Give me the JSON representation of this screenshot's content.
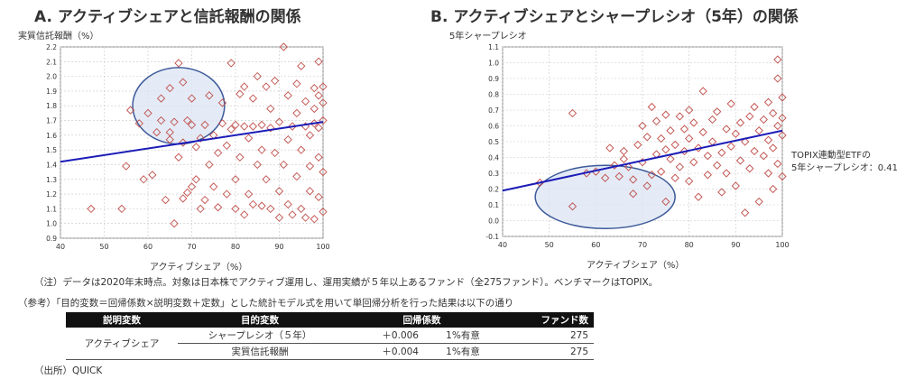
{
  "chart_a": {
    "title": "A. アクティブシェアと信託報酬の関係",
    "ylabel": "実質信託報酬（%）",
    "xlabel": "アクティブシェア（%）"
  },
  "chart_b": {
    "title": "B. アクティブシェアとシャープレシオ（5年）の関係",
    "ylabel": "5年シャープレシオ",
    "xlabel": "アクティブシェア（%）",
    "annotation_line1": "TOPIX連動型ETFの",
    "annotation_line2": "5年シャープレシオ：0.41"
  },
  "notes": {
    "note": "（注）データは2020年末時点。対象は日本株でアクティブ運用し、運用実績が５年以上あるファンド（全275ファンド）。ベンチマークはTOPIX。",
    "reference": "（参考）「目的変数＝回帰係数×説明変数＋定数」とした統計モデル式を用いて単回帰分析を行った結果は以下の通り",
    "source": "（出所）QUICK"
  },
  "table": {
    "headers": [
      "説明変数",
      "目的変数",
      "回帰係数",
      "ファンド数"
    ],
    "explanatory": "アクティブシェア",
    "rows": [
      {
        "target": "シャープレシオ（５年）",
        "coef": "＋0.006",
        "sig": "1%有意",
        "n": "275"
      },
      {
        "target": "実質信託報酬",
        "coef": "＋0.004",
        "sig": "1%有意",
        "n": "275"
      }
    ]
  },
  "chart_data": [
    {
      "type": "scatter",
      "title": "A. アクティブシェアと信託報酬の関係",
      "xlabel": "アクティブシェア（%）",
      "ylabel": "実質信託報酬（%）",
      "xlim": [
        40,
        100
      ],
      "ylim": [
        0.9,
        2.2
      ],
      "xticks": [
        40,
        50,
        60,
        70,
        80,
        90,
        100
      ],
      "yticks": [
        0.9,
        1.0,
        1.1,
        1.2,
        1.3,
        1.4,
        1.5,
        1.6,
        1.7,
        1.8,
        1.9,
        2.0,
        2.1,
        2.2
      ],
      "grid": true,
      "trendline": [
        [
          40,
          1.42
        ],
        [
          100,
          1.69
        ]
      ],
      "highlight_ellipse": {
        "x_center": 67,
        "y_center": 1.8,
        "x_radius": 10.5,
        "y_radius": 0.26
      },
      "points": [
        [
          47,
          1.1
        ],
        [
          54,
          1.1
        ],
        [
          55,
          1.39
        ],
        [
          56,
          1.77
        ],
        [
          58,
          1.68
        ],
        [
          59,
          1.3
        ],
        [
          60,
          1.75
        ],
        [
          61,
          1.33
        ],
        [
          62,
          1.62
        ],
        [
          63,
          1.7
        ],
        [
          63,
          1.85
        ],
        [
          64,
          1.16
        ],
        [
          65,
          1.57
        ],
        [
          65,
          1.62
        ],
        [
          65,
          1.92
        ],
        [
          66,
          1.0
        ],
        [
          66,
          1.69
        ],
        [
          67,
          2.09
        ],
        [
          67,
          1.45
        ],
        [
          68,
          1.17
        ],
        [
          68,
          1.96
        ],
        [
          68,
          1.55
        ],
        [
          69,
          1.7
        ],
        [
          69,
          1.21
        ],
        [
          70,
          1.25
        ],
        [
          70,
          1.67
        ],
        [
          70,
          1.85
        ],
        [
          71,
          1.52
        ],
        [
          71,
          1.3
        ],
        [
          72,
          1.58
        ],
        [
          72,
          1.1
        ],
        [
          73,
          1.67
        ],
        [
          73,
          1.16
        ],
        [
          74,
          1.87
        ],
        [
          74,
          1.4
        ],
        [
          75,
          1.25
        ],
        [
          75,
          1.6
        ],
        [
          76,
          1.11
        ],
        [
          76,
          1.48
        ],
        [
          77,
          1.68
        ],
        [
          77,
          1.82
        ],
        [
          78,
          1.53
        ],
        [
          78,
          1.2
        ],
        [
          79,
          1.64
        ],
        [
          79,
          2.09
        ],
        [
          80,
          1.1
        ],
        [
          80,
          1.3
        ],
        [
          80,
          1.67
        ],
        [
          81,
          1.45
        ],
        [
          81,
          1.88
        ],
        [
          82,
          1.06
        ],
        [
          82,
          1.66
        ],
        [
          82,
          1.93
        ],
        [
          83,
          1.58
        ],
        [
          83,
          1.2
        ],
        [
          84,
          1.13
        ],
        [
          84,
          1.85
        ],
        [
          84,
          1.66
        ],
        [
          85,
          1.4
        ],
        [
          85,
          2.0
        ],
        [
          86,
          1.67
        ],
        [
          86,
          1.5
        ],
        [
          86,
          1.12
        ],
        [
          87,
          1.93
        ],
        [
          87,
          1.3
        ],
        [
          88,
          1.65
        ],
        [
          88,
          1.78
        ],
        [
          88,
          1.1
        ],
        [
          89,
          1.48
        ],
        [
          89,
          1.97
        ],
        [
          90,
          1.04
        ],
        [
          90,
          1.69
        ],
        [
          90,
          1.22
        ],
        [
          91,
          2.2
        ],
        [
          91,
          1.4
        ],
        [
          92,
          1.57
        ],
        [
          92,
          1.87
        ],
        [
          92,
          1.13
        ],
        [
          93,
          1.06
        ],
        [
          93,
          1.66
        ],
        [
          94,
          1.32
        ],
        [
          94,
          1.95
        ],
        [
          94,
          1.75
        ],
        [
          95,
          1.1
        ],
        [
          95,
          1.5
        ],
        [
          95,
          2.07
        ],
        [
          96,
          1.04
        ],
        [
          96,
          1.66
        ],
        [
          96,
          1.83
        ],
        [
          97,
          1.6
        ],
        [
          97,
          1.39
        ],
        [
          97,
          1.22
        ],
        [
          98,
          1.92
        ],
        [
          98,
          1.68
        ],
        [
          98,
          1.78
        ],
        [
          98,
          1.03
        ],
        [
          99,
          1.87
        ],
        [
          99,
          1.65
        ],
        [
          99,
          1.45
        ],
        [
          99,
          2.1
        ],
        [
          99,
          1.18
        ],
        [
          100,
          1.7
        ],
        [
          100,
          1.93
        ],
        [
          100,
          1.35
        ],
        [
          100,
          1.08
        ],
        [
          100,
          1.82
        ]
      ]
    },
    {
      "type": "scatter",
      "title": "B. アクティブシェアとシャープレシオ（5年）の関係",
      "xlabel": "アクティブシェア（%）",
      "ylabel": "5年シャープレシオ",
      "xlim": [
        40,
        100
      ],
      "ylim": [
        -0.1,
        1.1
      ],
      "xticks": [
        40,
        50,
        60,
        70,
        80,
        90,
        100
      ],
      "yticks": [
        -0.1,
        0.0,
        0.1,
        0.2,
        0.3,
        0.4,
        0.5,
        0.6,
        0.7,
        0.8,
        0.9,
        1.0,
        1.1
      ],
      "grid": true,
      "trendline": [
        [
          40,
          0.19
        ],
        [
          100,
          0.57
        ]
      ],
      "highlight_ellipse": {
        "x_center": 62,
        "y_center": 0.15,
        "x_radius": 15,
        "y_radius": 0.2
      },
      "points": [
        [
          48,
          0.24
        ],
        [
          55,
          0.68
        ],
        [
          55,
          0.09
        ],
        [
          58,
          0.3
        ],
        [
          60,
          0.31
        ],
        [
          62,
          0.27
        ],
        [
          63,
          0.46
        ],
        [
          64,
          0.35
        ],
        [
          65,
          0.28
        ],
        [
          66,
          0.39
        ],
        [
          66,
          0.44
        ],
        [
          67,
          0.34
        ],
        [
          68,
          0.26
        ],
        [
          68,
          0.17
        ],
        [
          69,
          0.48
        ],
        [
          70,
          0.6
        ],
        [
          70,
          0.37
        ],
        [
          71,
          0.22
        ],
        [
          71,
          0.53
        ],
        [
          72,
          0.72
        ],
        [
          72,
          0.29
        ],
        [
          73,
          0.42
        ],
        [
          73,
          0.63
        ],
        [
          74,
          0.31
        ],
        [
          74,
          0.52
        ],
        [
          75,
          0.12
        ],
        [
          75,
          0.45
        ],
        [
          75,
          0.67
        ],
        [
          76,
          0.39
        ],
        [
          76,
          0.57
        ],
        [
          77,
          0.27
        ],
        [
          77,
          0.48
        ],
        [
          78,
          0.66
        ],
        [
          78,
          0.34
        ],
        [
          79,
          0.58
        ],
        [
          79,
          0.44
        ],
        [
          80,
          0.25
        ],
        [
          80,
          0.52
        ],
        [
          80,
          0.7
        ],
        [
          81,
          0.37
        ],
        [
          81,
          0.62
        ],
        [
          82,
          0.15
        ],
        [
          82,
          0.46
        ],
        [
          83,
          0.56
        ],
        [
          83,
          0.82
        ],
        [
          84,
          0.41
        ],
        [
          84,
          0.29
        ],
        [
          85,
          0.64
        ],
        [
          85,
          0.5
        ],
        [
          86,
          0.35
        ],
        [
          86,
          0.69
        ],
        [
          87,
          0.43
        ],
        [
          87,
          0.18
        ],
        [
          88,
          0.58
        ],
        [
          88,
          0.3
        ],
        [
          89,
          0.74
        ],
        [
          89,
          0.47
        ],
        [
          90,
          0.55
        ],
        [
          90,
          0.22
        ],
        [
          91,
          0.38
        ],
        [
          91,
          0.62
        ],
        [
          92,
          0.05
        ],
        [
          92,
          0.5
        ],
        [
          93,
          0.66
        ],
        [
          93,
          0.33
        ],
        [
          94,
          0.44
        ],
        [
          94,
          0.72
        ],
        [
          95,
          0.12
        ],
        [
          95,
          0.57
        ],
        [
          96,
          0.41
        ],
        [
          96,
          0.64
        ],
        [
          97,
          0.3
        ],
        [
          97,
          0.51
        ],
        [
          97,
          0.75
        ],
        [
          98,
          0.2
        ],
        [
          98,
          0.46
        ],
        [
          98,
          0.68
        ],
        [
          99,
          0.36
        ],
        [
          99,
          0.6
        ],
        [
          99,
          1.02
        ],
        [
          99,
          0.9
        ],
        [
          100,
          0.78
        ],
        [
          100,
          0.54
        ],
        [
          100,
          0.65
        ],
        [
          100,
          0.28
        ]
      ]
    }
  ]
}
